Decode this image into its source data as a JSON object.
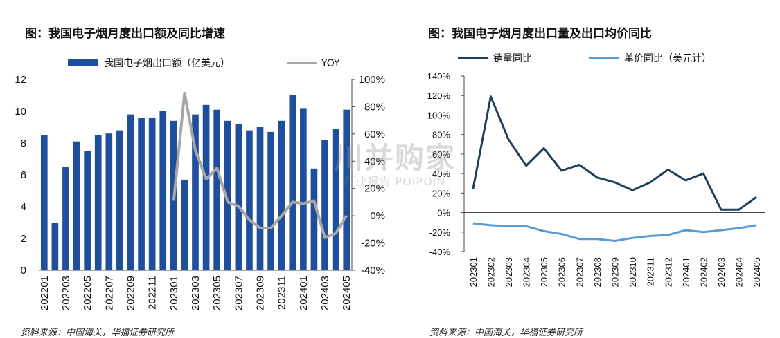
{
  "left": {
    "title": "图：我国电子烟月度出口额及同比增速",
    "source": "资料来源：中国海关，华福证券研究所"
  },
  "right": {
    "title": "图：我国电子烟月度出口量及出口均价同比",
    "source": "资料来源：中国海关，华福证券研究所"
  },
  "watermark": {
    "main": "川并购家",
    "sub": "行业报告 POIPOIN"
  },
  "colors": {
    "bar": "#1f4e9c",
    "yoy_line": "#a6a6a6",
    "volume_line": "#1f3f5f",
    "price_line": "#5b9bd5",
    "rule": "#3a78c0"
  },
  "chart_data": [
    {
      "type": "bar",
      "title": "图：我国电子烟月度出口额及同比增速",
      "categories": [
        "202201",
        "202202",
        "202203",
        "202204",
        "202205",
        "202206",
        "202207",
        "202208",
        "202209",
        "202210",
        "202211",
        "202212",
        "202301",
        "202302",
        "202303",
        "202304",
        "202305",
        "202306",
        "202307",
        "202308",
        "202309",
        "202310",
        "202311",
        "202312",
        "202401",
        "202402",
        "202403",
        "202404",
        "202405"
      ],
      "x_tick_labels": [
        "202201",
        "202203",
        "202205",
        "202207",
        "202209",
        "202211",
        "202301",
        "202303",
        "202305",
        "202307",
        "202309",
        "202311",
        "202401",
        "202403",
        "202405"
      ],
      "series": [
        {
          "name": "我国电子烟出口额（亿美元）",
          "axis": "left",
          "kind": "bar",
          "values": [
            8.5,
            3.0,
            6.5,
            8.1,
            7.5,
            8.5,
            8.6,
            8.8,
            9.8,
            9.6,
            9.6,
            10.0,
            9.4,
            5.7,
            9.8,
            10.4,
            10.1,
            9.4,
            9.2,
            8.8,
            9.0,
            8.7,
            9.4,
            11.0,
            10.2,
            6.4,
            8.2,
            8.9,
            10.1
          ]
        },
        {
          "name": "YOY",
          "axis": "right",
          "kind": "line",
          "values": [
            null,
            null,
            null,
            null,
            null,
            null,
            null,
            null,
            null,
            null,
            null,
            null,
            11,
            90,
            48,
            27,
            35,
            10,
            7,
            -3,
            -9,
            -9,
            0,
            10,
            9,
            11,
            -16,
            -13,
            0
          ]
        }
      ],
      "left_axis": {
        "ylim": [
          0,
          12
        ],
        "ticks": [
          "0",
          "2",
          "4",
          "6",
          "8",
          "10",
          "12"
        ]
      },
      "right_axis": {
        "ylim": [
          -40,
          100
        ],
        "ticks": [
          "-40%",
          "-20%",
          "0%",
          "20%",
          "40%",
          "60%",
          "80%",
          "100%"
        ]
      },
      "legend_position": "top"
    },
    {
      "type": "line",
      "title": "图：我国电子烟月度出口量及出口均价同比",
      "categories": [
        "202301",
        "202302",
        "202303",
        "202304",
        "202305",
        "202306",
        "202307",
        "202308",
        "202309",
        "202310",
        "202311",
        "202312",
        "202401",
        "202402",
        "202403",
        "202404",
        "202405"
      ],
      "series": [
        {
          "name": "销量同比",
          "values": [
            24,
            119,
            75,
            48,
            66,
            43,
            49,
            36,
            31,
            23,
            31,
            44,
            33,
            40,
            3,
            3,
            16
          ]
        },
        {
          "name": "单价同比（美元计）",
          "values": [
            -11,
            -13,
            -14,
            -14,
            -19,
            -22,
            -27,
            -27,
            -29,
            -26,
            -24,
            -23,
            -18,
            -20,
            -18,
            -16,
            -13
          ]
        }
      ],
      "ylim": [
        -40,
        140
      ],
      "y_ticks": [
        "-40%",
        "-20%",
        "0%",
        "20%",
        "40%",
        "60%",
        "80%",
        "100%",
        "120%",
        "140%"
      ],
      "legend_position": "top"
    }
  ]
}
